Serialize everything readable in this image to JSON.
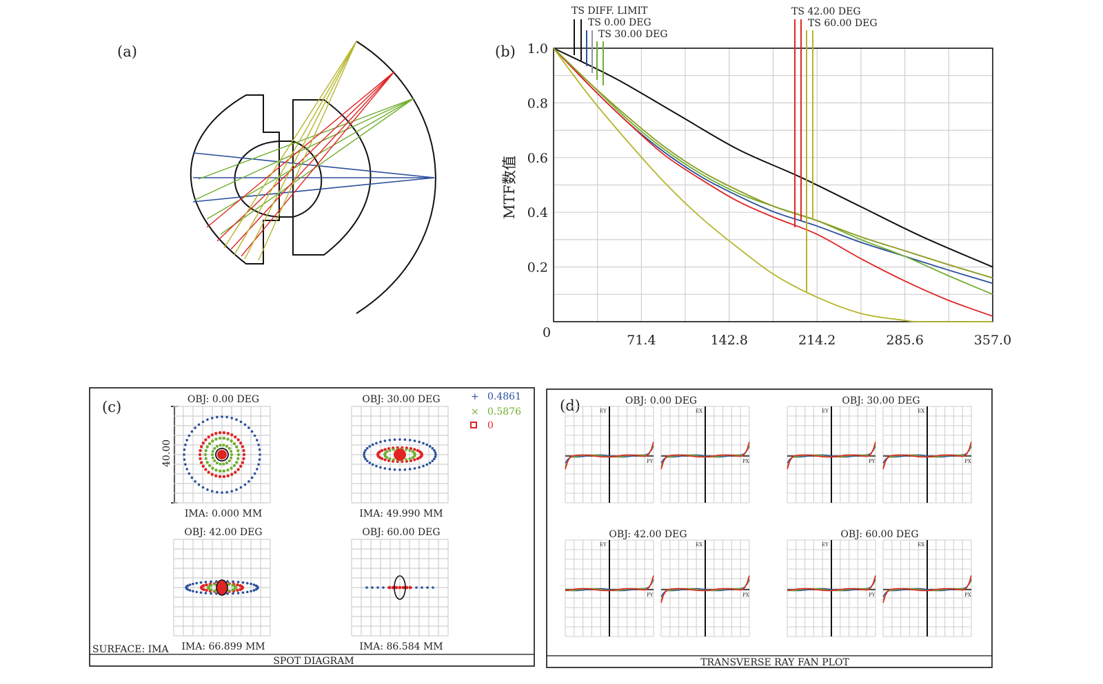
{
  "panels": {
    "a": {
      "label": "(a)"
    },
    "b": {
      "label": "(b)"
    },
    "c": {
      "label": "(c)"
    },
    "d": {
      "label": "(d)"
    }
  },
  "colors": {
    "black": "#111111",
    "blue": "#2a4f9c",
    "green": "#6fae2f",
    "red": "#e02424",
    "olive": "#b5b52a",
    "orange": "#d87a1e",
    "grid": "#cfcfcf"
  },
  "chart_data": [
    {
      "type": "line",
      "panel": "b",
      "ylabel": "MTF数值",
      "xlim": [
        0,
        357.0
      ],
      "ylim": [
        0,
        1.0
      ],
      "xticks": [
        "0",
        "71.4",
        "142.8",
        "214.2",
        "285.6",
        "357.0"
      ],
      "yticks": [
        "0.2",
        "0.4",
        "0.6",
        "0.8",
        "1.0"
      ],
      "grid": true,
      "legend_position": "top",
      "legend": [
        {
          "name": "TS DIFF. LIMIT",
          "color": "#111111"
        },
        {
          "name": "TS 0.00 DEG",
          "color": "#2a4f9c"
        },
        {
          "name": "TS 30.00 DEG",
          "color": "#6fae2f"
        },
        {
          "name": "TS 42.00 DEG",
          "color": "#e02424"
        },
        {
          "name": "TS 60.00 DEG",
          "color": "#b5b52a"
        }
      ],
      "series": [
        {
          "name": "TS DIFF. LIMIT",
          "color": "#111111",
          "x": [
            0,
            50,
            100,
            150,
            200,
            250,
            300,
            357
          ],
          "y": [
            1.0,
            0.89,
            0.76,
            0.63,
            0.53,
            0.42,
            0.31,
            0.2
          ]
        },
        {
          "color": "#2a4f9c",
          "x": [
            0,
            30,
            60,
            90,
            120,
            150,
            180,
            214,
            250,
            285,
            320,
            357
          ],
          "y": [
            1.0,
            0.86,
            0.73,
            0.62,
            0.53,
            0.46,
            0.4,
            0.35,
            0.29,
            0.24,
            0.19,
            0.14
          ]
        },
        {
          "color": "#6fae2f",
          "x": [
            0,
            30,
            60,
            90,
            120,
            150,
            180,
            214,
            250,
            285,
            320,
            357
          ],
          "y": [
            1.0,
            0.87,
            0.74,
            0.63,
            0.54,
            0.47,
            0.42,
            0.37,
            0.3,
            0.24,
            0.17,
            0.1
          ]
        },
        {
          "color": "#e02424",
          "x": [
            0,
            30,
            60,
            90,
            120,
            150,
            180,
            214,
            250,
            285,
            320,
            357
          ],
          "y": [
            1.0,
            0.86,
            0.73,
            0.61,
            0.52,
            0.44,
            0.38,
            0.32,
            0.23,
            0.15,
            0.08,
            0.02
          ]
        },
        {
          "color": "#b5b52a",
          "x": [
            0,
            30,
            60,
            90,
            120,
            150,
            180,
            214,
            250,
            285,
            300,
            357
          ],
          "y": [
            1.0,
            0.82,
            0.66,
            0.51,
            0.38,
            0.27,
            0.17,
            0.09,
            0.03,
            0.005,
            0.0,
            0.0
          ]
        },
        {
          "color": "#d87a1e",
          "x": [
            0,
            30,
            60,
            90,
            120,
            150,
            180,
            214,
            250,
            285,
            320,
            357
          ],
          "y": [
            1.0,
            0.87,
            0.75,
            0.64,
            0.55,
            0.48,
            0.42,
            0.37,
            0.31,
            0.26,
            0.21,
            0.16
          ]
        },
        {
          "color": "#8aa12a",
          "x": [
            0,
            30,
            60,
            90,
            120,
            150,
            180,
            214,
            250,
            285,
            320,
            357
          ],
          "y": [
            1.0,
            0.87,
            0.75,
            0.64,
            0.55,
            0.48,
            0.42,
            0.37,
            0.31,
            0.26,
            0.21,
            0.16
          ]
        }
      ]
    }
  ],
  "spot": {
    "plots": [
      {
        "obj": "OBJ: 0.00 DEG",
        "ima": "IMA: 0.000 MM"
      },
      {
        "obj": "OBJ: 30.00 DEG",
        "ima": "IMA: 49.990 MM"
      },
      {
        "obj": "OBJ: 42.00 DEG",
        "ima": "IMA: 66.899 MM"
      },
      {
        "obj": "OBJ: 60.00 DEG",
        "ima": "IMA: 86.584 MM"
      }
    ],
    "scale": "40.00",
    "surface": "SURFACE: IMA",
    "title": "SPOT DIAGRAM",
    "legend": [
      {
        "symbol": "+",
        "label": "0.4861",
        "color": "#2a4f9c"
      },
      {
        "symbol": "×",
        "label": "0.5876",
        "color": "#6fae2f"
      },
      {
        "symbol": "▫",
        "label": "0",
        "color": "#e02424"
      }
    ]
  },
  "fan": {
    "plots": [
      {
        "obj": "OBJ: 0.00 DEG"
      },
      {
        "obj": "OBJ: 30.00 DEG"
      },
      {
        "obj": "OBJ: 42.00 DEG"
      },
      {
        "obj": "OBJ: 60.00 DEG"
      }
    ],
    "axis_ey": "EY",
    "axis_ex": "EX",
    "axis_py": "PY",
    "axis_px": "PX",
    "title": "TRANSVERSE RAY FAN PLOT"
  }
}
